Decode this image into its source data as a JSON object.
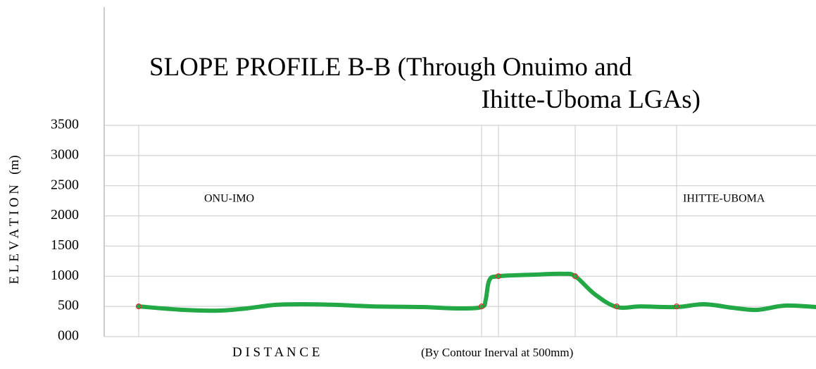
{
  "chart_data": {
    "type": "line",
    "title": [
      "SLOPE PROFILE  B-B (Through Onuimo and",
      "Ihitte-Uboma LGAs)"
    ],
    "y_label": "E L E V A T I O N   (m)",
    "x_label": [
      "D I S T A N C E",
      "(By Contour Inerval at 500mm)"
    ],
    "annotations": [
      {
        "text": "ONU-IMO",
        "x": 142,
        "y": 2275
      },
      {
        "text": "IHITTE-UBOMA",
        "x": 822,
        "y": 2275
      }
    ],
    "xlim": [
      0,
      1011
    ],
    "ylim": [
      0,
      3500
    ],
    "yticks": [
      {
        "value": 0,
        "label": "000"
      },
      500,
      1000,
      1500,
      2000,
      2500,
      3000,
      3500
    ],
    "grid": true,
    "series": [
      {
        "color": "#22a845",
        "x": [
          49,
          112,
          162,
          202,
          242,
          282,
          332,
          382,
          452,
          502,
          536,
          542,
          547,
          560,
          612,
          652,
          669,
          697,
          728,
          762,
          813,
          852,
          892,
          927,
          967,
          1011
        ],
        "values": [
          500,
          443,
          430,
          467,
          525,
          537,
          525,
          500,
          490,
          467,
          490,
          618,
          933,
          1000,
          1027,
          1040,
          1000,
          700,
          490,
          500,
          490,
          537,
          478,
          443,
          513,
          490
        ]
      }
    ],
    "markers": {
      "color": "#e03030",
      "x": [
        49,
        536,
        560,
        669,
        728,
        813
      ],
      "values": [
        500,
        500,
        1000,
        1000,
        500,
        500
      ]
    }
  }
}
